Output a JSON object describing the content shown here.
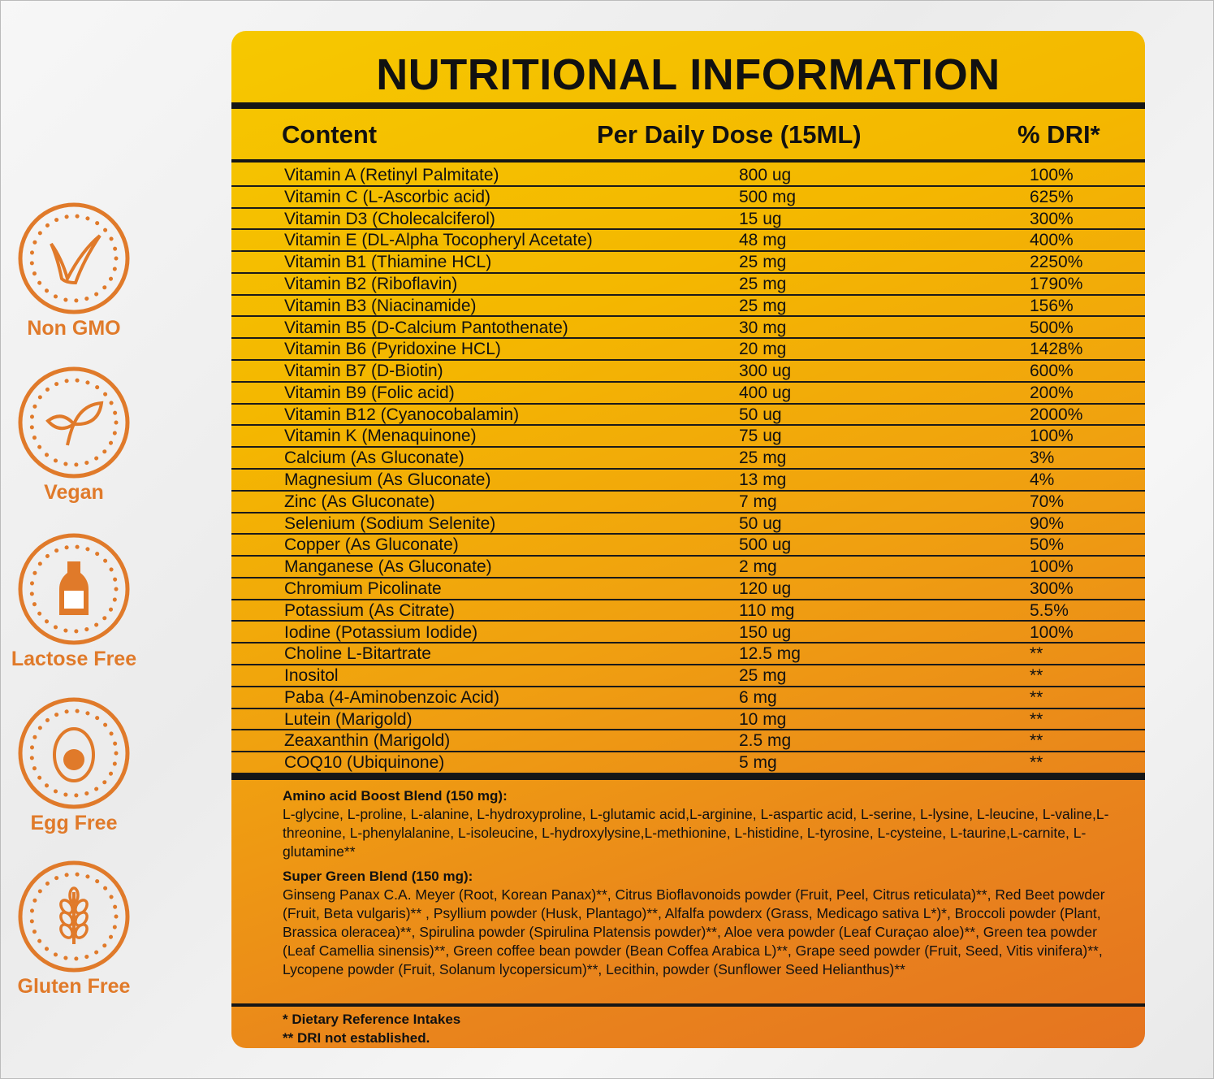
{
  "badges": [
    {
      "label": "Non GMO"
    },
    {
      "label": "Vegan"
    },
    {
      "label": "Lactose Free"
    },
    {
      "label": "Egg Free"
    },
    {
      "label": "Gluten Free"
    }
  ],
  "title": "NUTRITIONAL INFORMATION",
  "table": {
    "headers": [
      "Content",
      "Per Daily Dose (15ML)",
      "% DRI*"
    ],
    "rows": [
      [
        "Vitamin A (Retinyl Palmitate)",
        "800 ug",
        "100%"
      ],
      [
        "Vitamin C (L-Ascorbic acid)",
        "500 mg",
        "625%"
      ],
      [
        "Vitamin D3 (Cholecalciferol)",
        "15 ug",
        "300%"
      ],
      [
        "Vitamin E (DL-Alpha Tocopheryl Acetate)",
        "48 mg",
        "400%"
      ],
      [
        "Vitamin B1 (Thiamine HCL)",
        "25 mg",
        "2250%"
      ],
      [
        "Vitamin B2 (Riboflavin)",
        "25 mg",
        "1790%"
      ],
      [
        "Vitamin B3 (Niacinamide)",
        "25 mg",
        "156%"
      ],
      [
        "Vitamin B5 (D-Calcium Pantothenate)",
        "30 mg",
        "500%"
      ],
      [
        "Vitamin B6 (Pyridoxine HCL)",
        "20 mg",
        "1428%"
      ],
      [
        "Vitamin B7 (D-Biotin)",
        "300 ug",
        "600%"
      ],
      [
        "Vitamin B9 (Folic acid)",
        "400 ug",
        "200%"
      ],
      [
        "Vitamin B12 (Cyanocobalamin)",
        "50 ug",
        "2000%"
      ],
      [
        "Vitamin K (Menaquinone)",
        "75 ug",
        "100%"
      ],
      [
        "Calcium (As Gluconate)",
        "25 mg",
        "3%"
      ],
      [
        "Magnesium (As Gluconate)",
        "13 mg",
        "4%"
      ],
      [
        "Zinc (As Gluconate)",
        "7 mg",
        "70%"
      ],
      [
        "Selenium (Sodium Selenite)",
        "50 ug",
        "90%"
      ],
      [
        "Copper (As Gluconate)",
        "500 ug",
        "50%"
      ],
      [
        "Manganese (As Gluconate)",
        "2 mg",
        "100%"
      ],
      [
        "Chromium Picolinate",
        "120 ug",
        "300%"
      ],
      [
        "Potassium (As Citrate)",
        "110 mg",
        "5.5%"
      ],
      [
        "Iodine (Potassium Iodide)",
        "150 ug",
        "100%"
      ],
      [
        "Choline L-Bitartrate",
        "12.5 mg",
        "**"
      ],
      [
        "Inositol",
        "25 mg",
        "**"
      ],
      [
        "Paba (4-Aminobenzoic Acid)",
        "6 mg",
        "**"
      ],
      [
        "Lutein (Marigold)",
        "10 mg",
        "**"
      ],
      [
        "Zeaxanthin (Marigold)",
        "2.5 mg",
        "**"
      ],
      [
        "COQ10 (Ubiquinone)",
        "5 mg",
        "**"
      ]
    ]
  },
  "blends": [
    {
      "title": "Amino acid Boost Blend (150 mg):",
      "text": "L-glycine, L-proline, L-alanine, L-hydroxyproline, L-glutamic acid,L-arginine, L-aspartic acid, L-serine, L-lysine, L-leucine, L-valine,L-threonine, L-phenylalanine, L-isoleucine, L-hydroxylysine,L-methionine, L-histidine, L-tyrosine, L-cysteine, L-taurine,L-carnite, L-glutamine**"
    },
    {
      "title": "Super Green Blend (150 mg):",
      "text": "Ginseng Panax C.A. Meyer (Root, Korean Panax)**,  Citrus Bioflavonoids powder (Fruit, Peel, Citrus reticulata)**,  Red Beet powder (Fruit, Beta vulgaris)** ,  Psyllium powder (Husk, Plantago)**,  Alfalfa powderx (Grass, Medicago sativa L*)*,  Broccoli powder (Plant, Brassica oleracea)**,  Spirulina powder (Spirulina Platensis powder)**,  Aloe vera powder (Leaf Curaçao aloe)**,  Green tea powder (Leaf Camellia sinensis)**,  Green coffee bean powder (Bean Coffea Arabica L)**,  Grape seed powder (Fruit, Seed, Vitis vinifera)**,  Lycopene powder (Fruit, Solanum lycopersicum)**,  Lecithin, powder (Sunflower Seed Helianthus)**"
    }
  ],
  "footnotes": [
    "* Dietary Reference Intakes",
    "** DRI not established."
  ]
}
